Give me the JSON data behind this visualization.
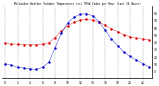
{
  "title": "Milwaukee Weather Outdoor Temperature (vs) THSW Index per Hour (Last 24 Hours)",
  "hours": [
    0,
    1,
    2,
    3,
    4,
    5,
    6,
    7,
    8,
    9,
    10,
    11,
    12,
    13,
    14,
    15,
    16,
    17,
    18,
    19,
    20,
    21,
    22,
    23
  ],
  "temp": [
    38,
    37,
    37,
    36,
    36,
    36,
    37,
    39,
    46,
    55,
    62,
    67,
    70,
    71,
    70,
    67,
    63,
    58,
    54,
    50,
    47,
    45,
    44,
    43
  ],
  "thsw": [
    10,
    8,
    5,
    4,
    3,
    2,
    5,
    12,
    32,
    52,
    66,
    74,
    78,
    79,
    76,
    68,
    56,
    44,
    35,
    26,
    20,
    15,
    10,
    6
  ],
  "temp_color": "#dd0000",
  "thsw_color": "#0000cc",
  "bg_color": "#ffffff",
  "plot_bg": "#ffffff",
  "grid_color": "#999999",
  "ylim_min": -10,
  "ylim_max": 90,
  "yticks": [
    0,
    10,
    20,
    30,
    40,
    50,
    60,
    70,
    80
  ],
  "ytick_labels": [
    "0",
    "10",
    "20",
    "30",
    "40",
    "50",
    "60",
    "70",
    "80"
  ],
  "xtick_positions": [
    0,
    1,
    2,
    3,
    4,
    5,
    6,
    7,
    8,
    9,
    10,
    11,
    12,
    13,
    14,
    15,
    16,
    17,
    18,
    19,
    20,
    21,
    22,
    23
  ],
  "line_width": 0.7,
  "marker": ".",
  "marker_size": 1.5
}
